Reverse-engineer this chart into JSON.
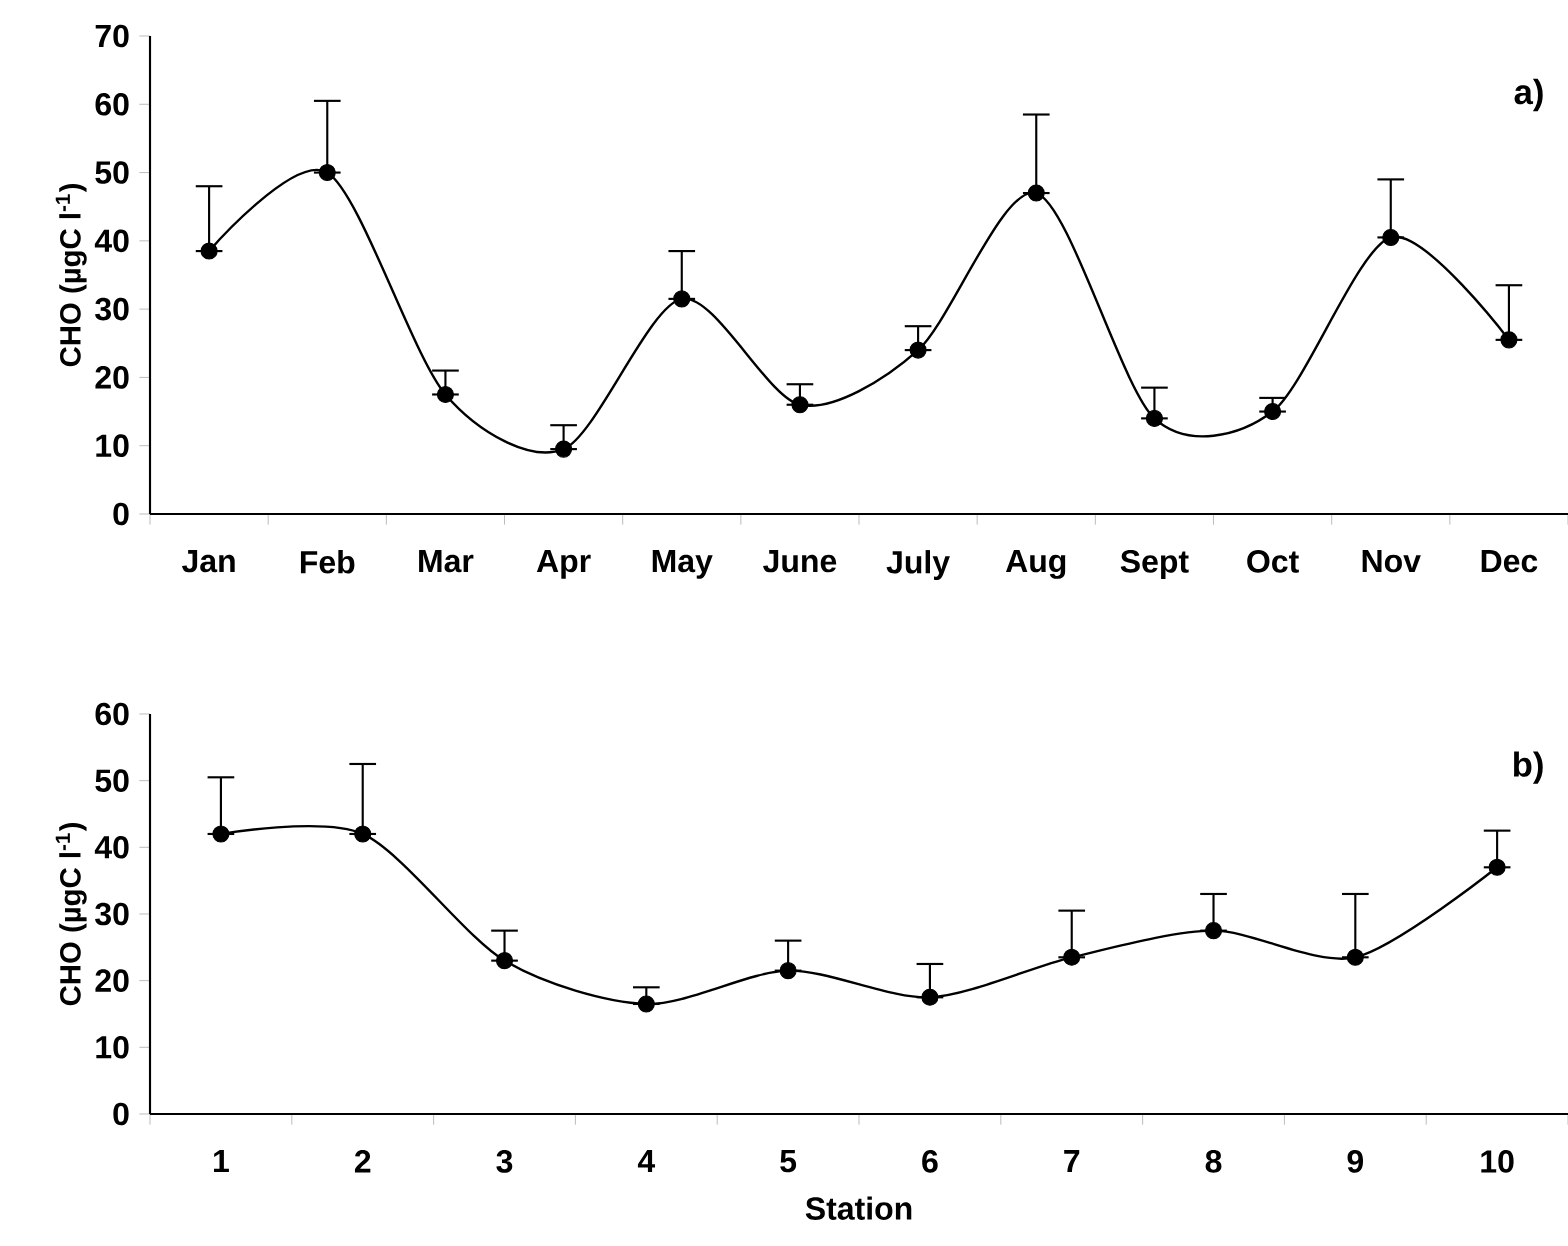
{
  "chart_data": [
    {
      "type": "line",
      "ylabel": "CHO (µgC l$^{-1}$)",
      "categories": [
        "Jan",
        "Feb",
        "Mar",
        "Apr",
        "May",
        "June",
        "July",
        "Aug",
        "Sept",
        "Oct",
        "Nov",
        "Dec"
      ],
      "series": [
        {
          "color": "#000000",
          "values": [
            38.5,
            50,
            17.5,
            9.5,
            31.5,
            16,
            24,
            47,
            14,
            15,
            40.5,
            25.5
          ],
          "errors": [
            [
              38.5,
              48
            ],
            [
              50,
              60.5
            ],
            [
              17.5,
              21
            ],
            [
              9.5,
              13
            ],
            [
              31.5,
              38.5
            ],
            [
              16,
              19
            ],
            [
              24,
              27.5
            ],
            [
              47,
              58.5
            ],
            [
              14,
              18.5
            ],
            [
              15,
              17
            ],
            [
              40.5,
              49
            ],
            [
              25.5,
              33.5
            ]
          ]
        }
      ],
      "ylim": [
        0,
        70
      ],
      "yticks": [
        0,
        10,
        20,
        30,
        40,
        50,
        60,
        70
      ],
      "marker": "circle",
      "line_style": "solid",
      "annotations": [
        "a)"
      ]
    },
    {
      "type": "line",
      "xlabel": "Station",
      "ylabel": "CHO (µgC l$^{-1}$)",
      "categories": [
        "1",
        "2",
        "3",
        "4",
        "5",
        "6",
        "7",
        "8",
        "9",
        "10"
      ],
      "series": [
        {
          "color": "#000000",
          "values": [
            42,
            42,
            23,
            16.5,
            21.5,
            17.5,
            23.5,
            27.5,
            23.5,
            37
          ],
          "errors": [
            [
              42,
              50.5
            ],
            [
              42,
              52.5
            ],
            [
              23,
              27.5
            ],
            [
              16.5,
              19
            ],
            [
              21.5,
              26
            ],
            [
              17.5,
              22.5
            ],
            [
              23.5,
              30.5
            ],
            [
              27.5,
              33
            ],
            [
              23.5,
              33
            ],
            [
              37,
              42.5
            ]
          ]
        }
      ],
      "ylim": [
        0,
        60
      ],
      "yticks": [
        0,
        10,
        20,
        30,
        40,
        50,
        60
      ],
      "marker": "circle",
      "line_style": "solid",
      "annotations": [
        "b)"
      ]
    }
  ]
}
